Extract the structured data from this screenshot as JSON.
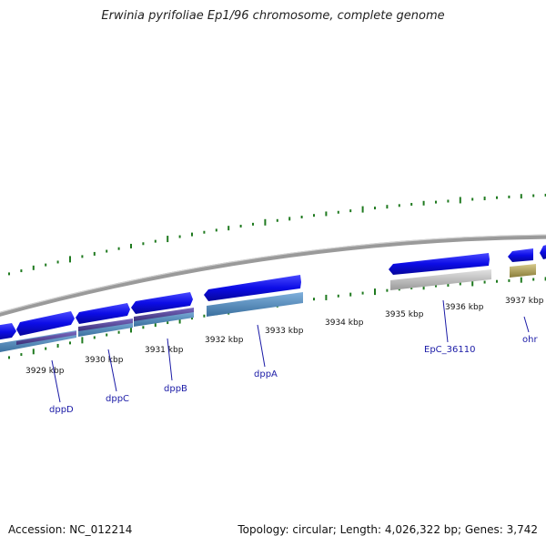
{
  "title": "Erwinia pyrifoliae Ep1/96 chromosome, complete genome",
  "footer": {
    "accession": "Accession: NC_012214",
    "summary": "Topology: circular; Length: 4,026,322 bp; Genes: 3,742"
  },
  "kbp_labels": [
    {
      "id": "kbp-3929",
      "text": "3929 kbp"
    },
    {
      "id": "kbp-3930",
      "text": "3930 kbp"
    },
    {
      "id": "kbp-3931",
      "text": "3931 kbp"
    },
    {
      "id": "kbp-3932",
      "text": "3932 kbp"
    },
    {
      "id": "kbp-3933",
      "text": "3933 kbp"
    },
    {
      "id": "kbp-3934",
      "text": "3934 kbp"
    },
    {
      "id": "kbp-3935",
      "text": "3935 kbp"
    },
    {
      "id": "kbp-3936",
      "text": "3936 kbp"
    },
    {
      "id": "kbp-3937",
      "text": "3937 kbp"
    }
  ],
  "gene_labels": [
    {
      "id": "dppD",
      "text": "dppD"
    },
    {
      "id": "dppC",
      "text": "dppC"
    },
    {
      "id": "dppB",
      "text": "dppB"
    },
    {
      "id": "dppA",
      "text": "dppA"
    },
    {
      "id": "EpC_36110",
      "text": "EpC_36110"
    },
    {
      "id": "ohr",
      "text": "ohr"
    }
  ],
  "colors": {
    "backbone": "#8a8a8a",
    "gene_arrow": "#1010e0",
    "cds_blue": "#4a86b8",
    "cds_purple": "#5a4a9a",
    "cds_grey": "#c4c4c4",
    "cds_olive": "#b8a95a",
    "tick_green": "#1f7a1f",
    "label_blue": "#1a1aa6"
  }
}
